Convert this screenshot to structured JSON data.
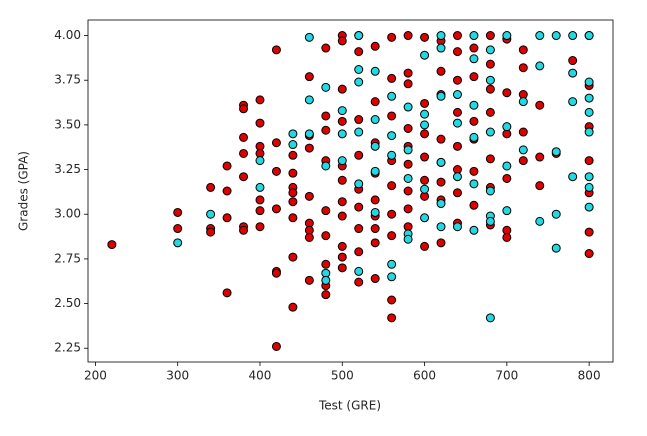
{
  "chart_data": {
    "type": "scatter",
    "xlabel": "Test (GRE)",
    "ylabel": "Grades (GPA)",
    "xlim": [
      191,
      829
    ],
    "ylim": [
      2.173,
      4.087
    ],
    "xticks": [
      200,
      300,
      400,
      500,
      600,
      700,
      800
    ],
    "yticks": [
      {
        "value": 2.25,
        "label": "2.25"
      },
      {
        "value": 2.5,
        "label": "2.50"
      },
      {
        "value": 2.75,
        "label": "2.75"
      },
      {
        "value": 3,
        "label": "3.00"
      },
      {
        "value": 3.25,
        "label": "3.25"
      },
      {
        "value": 3.5,
        "label": "3.50"
      },
      {
        "value": 3.75,
        "label": "3.75"
      },
      {
        "value": 4,
        "label": "4.00"
      }
    ],
    "grid": false,
    "edgecolor": "#000000",
    "series": [
      {
        "color": "#dd0000",
        "x": [
          220,
          300,
          300,
          340,
          340,
          340,
          360,
          360,
          360,
          360,
          380,
          380,
          380,
          380,
          380,
          380,
          380,
          400,
          400,
          400,
          400,
          400,
          400,
          400,
          420,
          420,
          420,
          420,
          420,
          420,
          420,
          440,
          440,
          440,
          440,
          440,
          440,
          440,
          440,
          460,
          460,
          460,
          460,
          460,
          460,
          460,
          460,
          480,
          480,
          480,
          480,
          480,
          480,
          480,
          480,
          480,
          500,
          500,
          500,
          500,
          500,
          500,
          500,
          500,
          500,
          500,
          500,
          520,
          520,
          520,
          520,
          520,
          520,
          520,
          520,
          520,
          540,
          540,
          540,
          540,
          540,
          540,
          540,
          540,
          540,
          560,
          560,
          560,
          560,
          560,
          560,
          560,
          560,
          560,
          580,
          580,
          580,
          580,
          580,
          580,
          580,
          580,
          580,
          600,
          600,
          600,
          600,
          600,
          600,
          600,
          620,
          620,
          620,
          620,
          620,
          620,
          620,
          620,
          640,
          640,
          640,
          640,
          640,
          640,
          640,
          640,
          660,
          660,
          660,
          660,
          660,
          660,
          680,
          680,
          680,
          680,
          680,
          680,
          680,
          700,
          700,
          700,
          700,
          700,
          700,
          720,
          720,
          720,
          720,
          720,
          740,
          740,
          740,
          760,
          780,
          800,
          800,
          800,
          800,
          800,
          800,
          800
        ],
        "y": [
          2.83,
          3.01,
          2.92,
          3.15,
          2.92,
          2.9,
          3.27,
          3.13,
          2.56,
          2.98,
          3.61,
          3.59,
          3.43,
          3.34,
          3.21,
          2.93,
          2.91,
          3.64,
          3.38,
          3.34,
          3.08,
          3.02,
          2.93,
          3.51,
          3.92,
          3.4,
          3.24,
          3.03,
          2.68,
          2.67,
          2.26,
          3.33,
          3.23,
          3.15,
          3.12,
          3.07,
          2.98,
          2.76,
          2.48,
          3.77,
          3.44,
          3.37,
          3.1,
          2.95,
          2.91,
          2.87,
          2.63,
          3.93,
          3.55,
          3.47,
          3.3,
          3.02,
          2.88,
          2.72,
          2.6,
          2.55,
          4,
          3.97,
          3.7,
          3.52,
          3.27,
          3.19,
          3.07,
          2.99,
          2.82,
          2.76,
          2.7,
          4,
          3.91,
          3.53,
          3.33,
          3.14,
          3.04,
          2.92,
          2.79,
          2.62,
          3.94,
          3.63,
          3.4,
          3.23,
          3.08,
          2.99,
          2.92,
          2.84,
          2.64,
          3.99,
          3.76,
          3.55,
          3.3,
          3.16,
          3,
          2.88,
          2.52,
          2.42,
          4,
          3.79,
          3.73,
          3.48,
          3.38,
          3.28,
          3.13,
          3.03,
          2.93,
          3.99,
          3.62,
          3.45,
          3.32,
          3.19,
          3.1,
          2.82,
          3.97,
          3.8,
          3.67,
          3.42,
          3.29,
          3.18,
          3.08,
          2.84,
          4,
          3.91,
          3.75,
          3.57,
          3.38,
          3.25,
          3.12,
          2.95,
          3.93,
          3.77,
          3.52,
          3.42,
          3.24,
          3.05,
          4,
          3.84,
          3.7,
          3.57,
          3.31,
          3.15,
          2.94,
          3.98,
          3.68,
          3.45,
          3.2,
          2.91,
          2.87,
          3.92,
          3.82,
          3.67,
          3.46,
          3.3,
          3.61,
          3.32,
          3.16,
          3.34,
          3.86,
          4,
          3.72,
          3.49,
          3.3,
          3.12,
          2.9,
          2.78
        ]
      },
      {
        "color": "#22d8e2",
        "x": [
          300,
          340,
          400,
          400,
          440,
          440,
          460,
          460,
          460,
          480,
          480,
          480,
          480,
          500,
          500,
          500,
          520,
          520,
          520,
          520,
          520,
          520,
          540,
          540,
          540,
          540,
          540,
          560,
          560,
          560,
          560,
          560,
          580,
          580,
          580,
          580,
          580,
          600,
          600,
          600,
          600,
          600,
          620,
          620,
          620,
          620,
          620,
          620,
          640,
          640,
          640,
          640,
          660,
          660,
          660,
          660,
          660,
          660,
          680,
          680,
          680,
          680,
          680,
          680,
          680,
          700,
          700,
          700,
          700,
          720,
          720,
          740,
          740,
          740,
          760,
          760,
          760,
          760,
          780,
          780,
          780,
          780,
          800,
          800,
          800,
          800,
          800,
          800,
          800,
          800
        ],
        "y": [
          2.84,
          3,
          3.15,
          3.3,
          3.45,
          3.39,
          3.99,
          3.64,
          3.45,
          3.71,
          3.27,
          2.67,
          2.63,
          3.58,
          3.45,
          3.3,
          4,
          3.81,
          3.74,
          3.46,
          3.17,
          2.68,
          3.8,
          3.53,
          3.38,
          3.24,
          3.01,
          3.66,
          3.44,
          3.33,
          2.72,
          2.65,
          3.6,
          3.36,
          3.2,
          2.89,
          2.86,
          3.89,
          3.56,
          3.5,
          3.14,
          2.98,
          4,
          3.93,
          3.66,
          3.29,
          3.06,
          2.93,
          3.67,
          3.51,
          3.21,
          2.93,
          4,
          3.87,
          3.61,
          3.43,
          3.17,
          2.91,
          3.92,
          3.75,
          3.46,
          3.13,
          2.99,
          2.96,
          2.42,
          4,
          3.49,
          3.27,
          3.02,
          3.63,
          3.36,
          4,
          3.83,
          2.96,
          4,
          3.35,
          3,
          2.81,
          4,
          3.79,
          3.63,
          3.21,
          4,
          3.74,
          3.65,
          3.57,
          3.46,
          3.21,
          3.15,
          3.04
        ]
      }
    ]
  }
}
